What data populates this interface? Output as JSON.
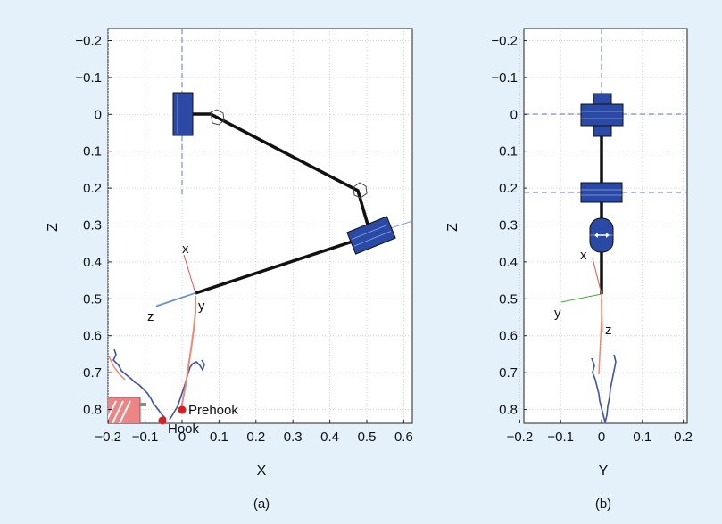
{
  "panel_a": {
    "caption": "(a)",
    "xlabel": "X",
    "ylabel": "Z",
    "xticks": [
      "−0.2",
      "−0.1",
      "0",
      "0.1",
      "0.2",
      "0.3",
      "0.4",
      "0.5",
      "0.6"
    ],
    "zticks": [
      "−0.2",
      "−0.1",
      "0",
      "0.1",
      "0.2",
      "0.3",
      "0.4",
      "0.5",
      "0.6",
      "0.7",
      "0.8"
    ],
    "frame_labels": {
      "x": "x",
      "y": "y",
      "z": "z"
    },
    "annotations": {
      "prehook": "Prehook",
      "hook": "Hook"
    }
  },
  "panel_b": {
    "caption": "(b)",
    "xlabel": "Y",
    "ylabel": "Z",
    "yticks": [
      "−0.2",
      "−0.1",
      "0",
      "0.1",
      "0.2"
    ],
    "zticks": [
      "−0.2",
      "−0.1",
      "0",
      "0.1",
      "0.2",
      "0.3",
      "0.4",
      "0.5",
      "0.6",
      "0.7",
      "0.8"
    ],
    "frame_labels": {
      "x": "x",
      "y": "y",
      "z": "z"
    }
  },
  "colors": {
    "background": "#e4f1fb",
    "link_block": "#2a4aa6",
    "trajectory": "#3b52b0",
    "x_axis": "#e05a4a",
    "y_axis": "#49a83a",
    "z_axis": "#5b86d6",
    "obstacle": "#ec8686",
    "marker": "#d92020"
  }
}
